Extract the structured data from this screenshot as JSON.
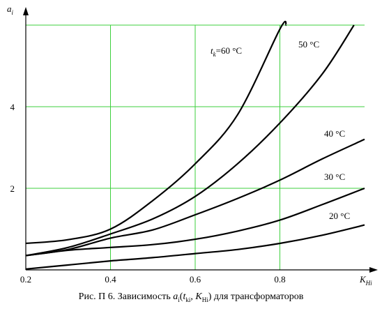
{
  "chart_data": {
    "type": "line",
    "xlabel": "K",
    "xlabel_sub": "Hi",
    "ylabel": "a",
    "ylabel_sub": "i",
    "xlim": [
      0.2,
      1.0
    ],
    "ylim": [
      0,
      6
    ],
    "x_ticks": [
      "0.2",
      "0.4",
      "0.6",
      "0.8"
    ],
    "y_ticks": [
      "2",
      "4"
    ],
    "grid": true,
    "series": [
      {
        "name": "t",
        "name_sub": "k",
        "name_rest": "=60 °C",
        "points": [
          [
            0.2,
            0.65
          ],
          [
            0.3,
            0.74
          ],
          [
            0.4,
            1.0
          ],
          [
            0.5,
            1.7
          ],
          [
            0.6,
            2.6
          ],
          [
            0.7,
            3.8
          ],
          [
            0.8,
            5.9
          ],
          [
            0.815,
            6.0
          ]
        ]
      },
      {
        "name": "50 °C",
        "points": [
          [
            0.2,
            0.35
          ],
          [
            0.3,
            0.55
          ],
          [
            0.4,
            0.88
          ],
          [
            0.5,
            1.25
          ],
          [
            0.6,
            1.8
          ],
          [
            0.7,
            2.6
          ],
          [
            0.8,
            3.6
          ],
          [
            0.9,
            4.8
          ],
          [
            0.975,
            6.0
          ]
        ]
      },
      {
        "name": "40 °C",
        "points": [
          [
            0.2,
            0.35
          ],
          [
            0.3,
            0.5
          ],
          [
            0.4,
            0.78
          ],
          [
            0.5,
            0.98
          ],
          [
            0.6,
            1.35
          ],
          [
            0.7,
            1.75
          ],
          [
            0.8,
            2.2
          ],
          [
            0.9,
            2.72
          ],
          [
            1.0,
            3.2
          ]
        ]
      },
      {
        "name": "30 °C",
        "points": [
          [
            0.2,
            0.35
          ],
          [
            0.3,
            0.48
          ],
          [
            0.4,
            0.55
          ],
          [
            0.5,
            0.62
          ],
          [
            0.6,
            0.75
          ],
          [
            0.7,
            0.95
          ],
          [
            0.8,
            1.22
          ],
          [
            0.9,
            1.6
          ],
          [
            1.0,
            2.0
          ]
        ]
      },
      {
        "name": "20 °C",
        "points": [
          [
            0.2,
            0.02
          ],
          [
            0.3,
            0.12
          ],
          [
            0.4,
            0.22
          ],
          [
            0.5,
            0.3
          ],
          [
            0.6,
            0.4
          ],
          [
            0.7,
            0.5
          ],
          [
            0.8,
            0.65
          ],
          [
            0.9,
            0.85
          ],
          [
            1.0,
            1.1
          ]
        ]
      }
    ]
  },
  "caption": {
    "prefix": "Рис. П   6. Зависимость ",
    "a": "a",
    "a_sub": "i",
    "open": "(",
    "t": "t",
    "t_sub": "ki",
    "comma": ", ",
    "K": "K",
    "K_sub": "Hi",
    "close": ")",
    "suffix": " для трансформаторов"
  }
}
